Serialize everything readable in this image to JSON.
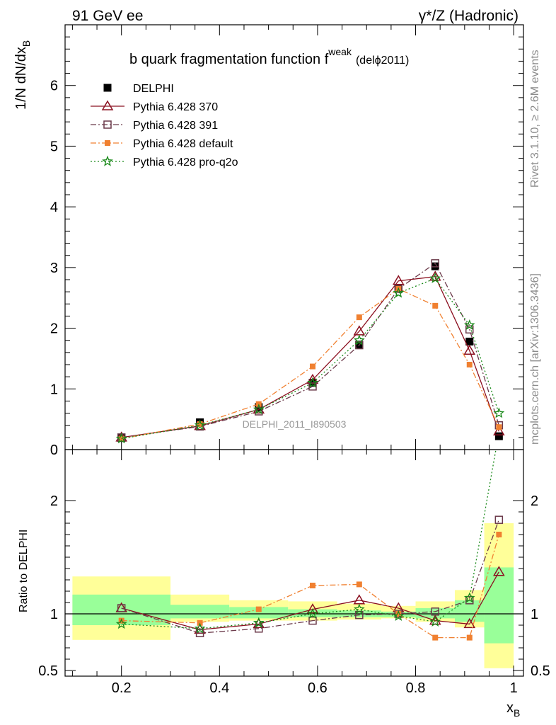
{
  "header": {
    "left_label": "91 GeV ee",
    "right_label": "γ*/Z (Hadronic)"
  },
  "side_text": {
    "rivet": "Rivet 3.1.10, ≥ 2.6M events",
    "mcplots": "mcplots.cern.ch [arXiv:1306.3436]"
  },
  "chart_data": [
    {
      "type": "line",
      "title_main": "b quark fragmentation function f",
      "title_sup": "weak",
      "title_suffix": "(delϕ2011)",
      "ylabel_main": "1/N dN/dx",
      "ylabel_sub": "B",
      "watermark": "DELPHI_2011_I890503",
      "xlim": [
        0.085,
        1.02
      ],
      "ylim": [
        0,
        7.0
      ],
      "yticks": [
        0,
        1,
        2,
        3,
        4,
        5,
        6
      ],
      "legend_position": "top-left",
      "x": [
        0.2,
        0.36,
        0.48,
        0.59,
        0.685,
        0.765,
        0.84,
        0.91,
        0.97
      ],
      "series": [
        {
          "name": "DELPHI",
          "marker": "filled-square",
          "color": "#000000",
          "values": [
            0.19,
            0.45,
            0.7,
            1.1,
            1.73,
            2.65,
            3.02,
            1.78,
            0.22
          ]
        },
        {
          "name": "Pythia 6.428 370",
          "marker": "open-triangle",
          "color": "#8b1020",
          "dash": "solid",
          "values": [
            0.2,
            0.39,
            0.66,
            1.15,
            1.95,
            2.78,
            2.85,
            1.63,
            0.3
          ]
        },
        {
          "name": "Pythia 6.428 391",
          "marker": "open-square",
          "color": "#6b3a4a",
          "dash": "dashdot",
          "values": [
            0.2,
            0.38,
            0.63,
            1.04,
            1.72,
            2.65,
            3.07,
            1.98,
            0.4
          ]
        },
        {
          "name": "Pythia 6.428 default",
          "marker": "filled-small-square",
          "color": "#f08030",
          "dash": "dashdot",
          "values": [
            0.18,
            0.42,
            0.75,
            1.37,
            2.18,
            2.65,
            2.37,
            1.4,
            0.37
          ]
        },
        {
          "name": "Pythia 6.428 pro-q2o",
          "marker": "open-star",
          "color": "#1a8a1a",
          "dash": "dotted",
          "values": [
            0.18,
            0.4,
            0.66,
            1.1,
            1.8,
            2.58,
            2.82,
            2.05,
            0.6
          ]
        }
      ]
    },
    {
      "type": "line",
      "ylabel": "Ratio to DELPHI",
      "xlabel_main": "x",
      "xlabel_sub": "B",
      "xlim": [
        0.085,
        1.02
      ],
      "ylim": [
        0.45,
        2.45
      ],
      "yticks": [
        0.5,
        1,
        2
      ],
      "ytick_labels": [
        "0.5",
        "1",
        "2"
      ],
      "xticks": [
        0.2,
        0.4,
        0.6,
        0.8,
        1.0
      ],
      "xtick_labels": [
        "0.2",
        "0.4",
        "0.6",
        "0.8",
        "1"
      ],
      "uncertainty_bins": [
        {
          "x0": 0.1,
          "x1": 0.3,
          "inner": [
            0.9,
            1.17
          ],
          "outer": [
            0.77,
            1.33
          ]
        },
        {
          "x0": 0.3,
          "x1": 0.42,
          "inner": [
            0.96,
            1.08
          ],
          "outer": [
            0.93,
            1.17
          ]
        },
        {
          "x0": 0.42,
          "x1": 0.54,
          "inner": [
            0.96,
            1.06
          ],
          "outer": [
            0.94,
            1.12
          ]
        },
        {
          "x0": 0.54,
          "x1": 0.64,
          "inner": [
            0.97,
            1.04
          ],
          "outer": [
            0.94,
            1.11
          ]
        },
        {
          "x0": 0.64,
          "x1": 0.73,
          "inner": [
            0.97,
            1.03
          ],
          "outer": [
            0.95,
            1.09
          ]
        },
        {
          "x0": 0.73,
          "x1": 0.8,
          "inner": [
            0.97,
            1.02
          ],
          "outer": [
            0.96,
            1.07
          ]
        },
        {
          "x0": 0.8,
          "x1": 0.88,
          "inner": [
            0.96,
            1.05
          ],
          "outer": [
            0.93,
            1.11
          ]
        },
        {
          "x0": 0.88,
          "x1": 0.94,
          "inner": [
            0.93,
            1.12
          ],
          "outer": [
            0.88,
            1.21
          ]
        },
        {
          "x0": 0.94,
          "x1": 1.0,
          "inner": [
            0.74,
            1.41
          ],
          "outer": [
            0.52,
            1.8
          ]
        }
      ],
      "x": [
        0.2,
        0.36,
        0.48,
        0.59,
        0.685,
        0.765,
        0.84,
        0.91,
        0.97
      ],
      "series": [
        {
          "name": "Pythia 6.428 370",
          "marker": "open-triangle",
          "color": "#8b1020",
          "dash": "solid",
          "values": [
            1.05,
            0.86,
            0.91,
            1.04,
            1.12,
            1.05,
            0.94,
            0.91,
            1.37
          ]
        },
        {
          "name": "Pythia 6.428 391",
          "marker": "open-square",
          "color": "#6b3a4a",
          "dash": "dashdot",
          "values": [
            1.05,
            0.83,
            0.87,
            0.94,
            0.99,
            1.0,
            1.02,
            1.12,
            1.83
          ]
        },
        {
          "name": "Pythia 6.428 default",
          "marker": "filled-small-square",
          "color": "#f08030",
          "dash": "dashdot",
          "values": [
            0.94,
            0.92,
            1.04,
            1.25,
            1.26,
            1.0,
            0.79,
            0.79,
            1.7
          ]
        },
        {
          "name": "Pythia 6.428 pro-q2o",
          "marker": "open-star",
          "color": "#1a8a1a",
          "dash": "dotted",
          "values": [
            0.91,
            0.87,
            0.92,
            1.0,
            1.04,
            0.98,
            0.93,
            1.14,
            2.6
          ]
        }
      ]
    }
  ]
}
